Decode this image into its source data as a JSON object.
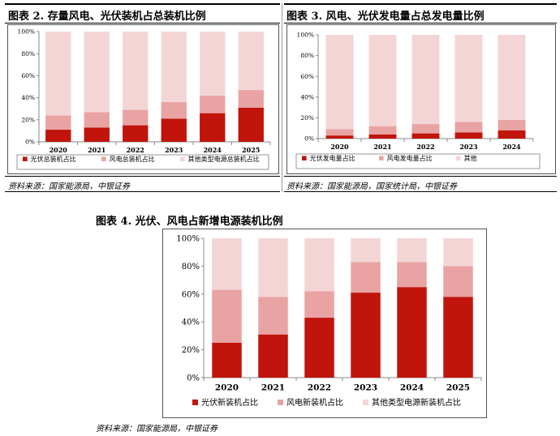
{
  "colors": {
    "solar": "#c0140c",
    "wind": "#e9a3a3",
    "other": "#f4d5d5",
    "axis": "#888888",
    "frame": "#555555"
  },
  "chart_data": [
    {
      "type": "bar",
      "stacked": true,
      "title": "图表 2. 存量风电、光伏装机占总装机比例",
      "categories": [
        "2020",
        "2021",
        "2022",
        "2023",
        "2024",
        "2025"
      ],
      "series": [
        {
          "name": "光伏总装机占比",
          "values": [
            11,
            13,
            15,
            21,
            26,
            31
          ]
        },
        {
          "name": "风电总装机占比",
          "values": [
            13,
            14,
            14,
            15,
            16,
            16
          ]
        },
        {
          "name": "其他类型电源总装机占比",
          "values": [
            76,
            73,
            71,
            64,
            58,
            53
          ]
        }
      ],
      "yticks": [
        "0%",
        "20%",
        "40%",
        "60%",
        "80%",
        "100%"
      ],
      "ylim": [
        0,
        100
      ],
      "legend_position": "bottom",
      "source": "资料来源：国家能源局，中银证券"
    },
    {
      "type": "bar",
      "stacked": true,
      "title": "图表 3. 风电、光伏发电量占总发电量比例",
      "categories": [
        "2020",
        "2021",
        "2022",
        "2023",
        "2024"
      ],
      "series": [
        {
          "name": "光伏发电量占比",
          "values": [
            3,
            4,
            5,
            6,
            8
          ]
        },
        {
          "name": "风电发电量占比",
          "values": [
            6,
            8,
            9,
            10,
            10
          ]
        },
        {
          "name": "其他",
          "values": [
            91,
            88,
            86,
            84,
            82
          ]
        }
      ],
      "yticks": [
        "0%",
        "20%",
        "40%",
        "60%",
        "80%",
        "100%"
      ],
      "ylim": [
        0,
        100
      ],
      "legend_position": "bottom",
      "source": "资料来源：国家能源局，国家统计局，中银证券"
    },
    {
      "type": "bar",
      "stacked": true,
      "title": "图表 4. 光伏、风电占新增电源装机比例",
      "categories": [
        "2020",
        "2021",
        "2022",
        "2023",
        "2024",
        "2025"
      ],
      "series": [
        {
          "name": "光伏新装机占比",
          "values": [
            25,
            31,
            43,
            61,
            65,
            58
          ]
        },
        {
          "name": "风电新装机占比",
          "values": [
            38,
            27,
            19,
            22,
            18,
            22
          ]
        },
        {
          "name": "其他类型电源新装机占比",
          "values": [
            37,
            42,
            38,
            17,
            17,
            20
          ]
        }
      ],
      "yticks": [
        "0%",
        "20%",
        "40%",
        "60%",
        "80%",
        "100%"
      ],
      "ylim": [
        0,
        100
      ],
      "legend_position": "bottom",
      "source": "资料来源：国家能源局，中银证券"
    }
  ]
}
